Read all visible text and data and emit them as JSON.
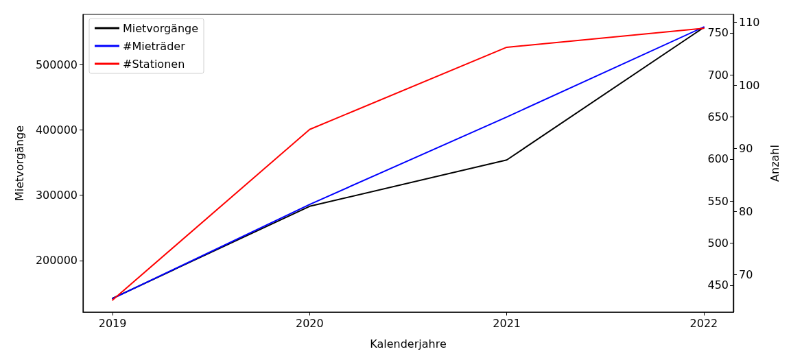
{
  "chart_data": {
    "type": "line",
    "xlabel": "Kalenderjahre",
    "ylabel": "Mietvorgänge",
    "y2label": "Anzahl",
    "x": [
      2019,
      2020,
      2021,
      2022
    ],
    "xlim": [
      2018.85,
      2022.15
    ],
    "xticks": [
      2019,
      2020,
      2021,
      2022
    ],
    "ylim": [
      121000,
      577000
    ],
    "yticks": [
      200000,
      300000,
      400000,
      500000
    ],
    "y2lim": [
      418,
      772
    ],
    "y2ticks": [
      450,
      500,
      550,
      600,
      650,
      700,
      750
    ],
    "y3lim": [
      64.1,
      111.2
    ],
    "y3ticks": [
      70,
      80,
      90,
      100,
      110
    ],
    "series": [
      {
        "name": "Mietvorgänge",
        "color": "#000000",
        "values": [
          142000,
          283000,
          354000,
          557000
        ]
      },
      {
        "name": "#Mieträder",
        "color": "#0000ff",
        "axis": "y2",
        "values": [
          434,
          546,
          650,
          757
        ]
      },
      {
        "name": "#Stationen",
        "color": "#ff0000",
        "axis": "y3",
        "values": [
          66,
          93,
          106,
          109
        ]
      }
    ],
    "grid": false,
    "legend": "top left",
    "marker": "none",
    "line_style": "solid"
  }
}
